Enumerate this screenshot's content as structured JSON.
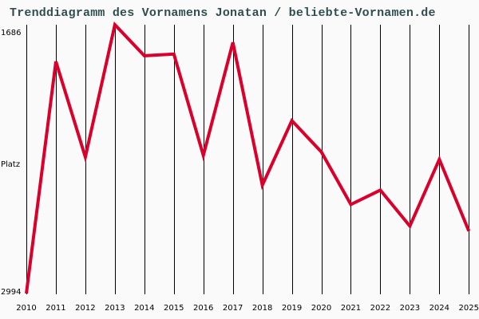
{
  "title": "Trenddiagramm des Vornamens Jonatan / beliebte-Vornamen.de",
  "y_axis": {
    "top_label": "1686",
    "middle_label": "Platz",
    "bottom_label": "2994"
  },
  "colors": {
    "line": "#d9002b",
    "grid": "#000000",
    "title": "#2f4f4f",
    "background": "#fafafa"
  },
  "chart_data": {
    "type": "line",
    "title": "Trenddiagramm des Vornamens Jonatan / beliebte-Vornamen.de",
    "xlabel": "",
    "ylabel": "Platz",
    "ylim": [
      2994,
      1686
    ],
    "y_inverted": true,
    "grid": "vertical",
    "categories": [
      "2010",
      "2011",
      "2012",
      "2013",
      "2014",
      "2015",
      "2016",
      "2017",
      "2018",
      "2019",
      "2020",
      "2021",
      "2022",
      "2023",
      "2024",
      "2025"
    ],
    "series": [
      {
        "name": "Jonatan",
        "values": [
          2994,
          1865,
          2330,
          1686,
          1837,
          1829,
          2322,
          1772,
          2467,
          2153,
          2305,
          2561,
          2491,
          2666,
          2341,
          2690
        ]
      }
    ]
  }
}
